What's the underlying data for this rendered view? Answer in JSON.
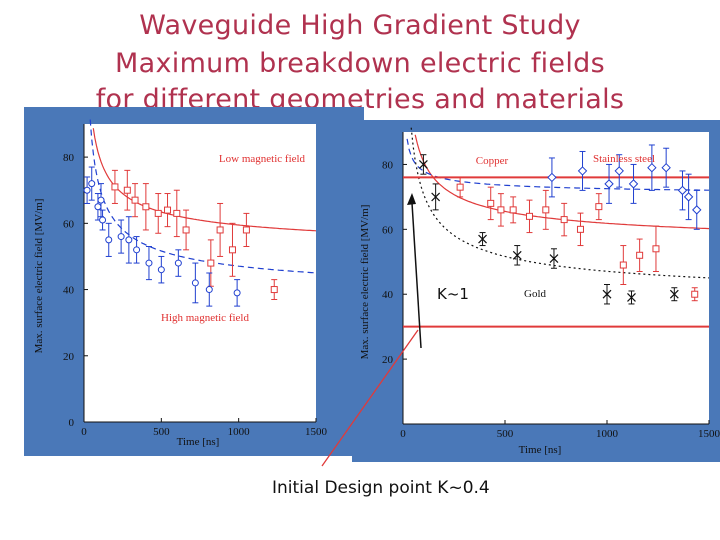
{
  "slide": {
    "title_line1": "Waveguide High Gradient Study",
    "title_line2": "Maximum breakdown electric fields",
    "title_line3": "for different geometries and materials",
    "caption": "Initial Design point K~0.4",
    "k_label": "K~1"
  },
  "colors": {
    "panel_blue": "#4a78b8",
    "plot_bg": "#ffffff",
    "red": "#e03a3a",
    "blue": "#2040d0",
    "black": "#111111",
    "title": "#b0324f"
  },
  "chart_data": [
    {
      "type": "scatter",
      "xlabel": "Time [ns]",
      "ylabel": "Max. surface electric field [MV/m]",
      "xlim": [
        0,
        1500
      ],
      "ylim": [
        0,
        90
      ],
      "x_ticks": [
        0,
        500,
        1000,
        1500
      ],
      "y_ticks": [
        0,
        20,
        40,
        60,
        80
      ],
      "annotations": [
        "Low magnetic field",
        "High magnetic field"
      ],
      "series": [
        {
          "color": "red",
          "marker": "square",
          "points": [
            {
              "x": 200,
              "y": 71,
              "err": 5
            },
            {
              "x": 280,
              "y": 70,
              "err": 6
            },
            {
              "x": 330,
              "y": 67,
              "err": 5
            },
            {
              "x": 400,
              "y": 65,
              "err": 7
            },
            {
              "x": 480,
              "y": 63,
              "err": 6
            },
            {
              "x": 540,
              "y": 64,
              "err": 5
            },
            {
              "x": 600,
              "y": 63,
              "err": 7
            },
            {
              "x": 660,
              "y": 58,
              "err": 6
            },
            {
              "x": 820,
              "y": 48,
              "err": 7
            },
            {
              "x": 880,
              "y": 58,
              "err": 8
            },
            {
              "x": 960,
              "y": 52,
              "err": 8
            },
            {
              "x": 1050,
              "y": 58,
              "err": 5
            },
            {
              "x": 1230,
              "y": 40,
              "err": 3
            }
          ]
        },
        {
          "color": "blue",
          "marker": "circle",
          "points": [
            {
              "x": 20,
              "y": 70,
              "err": 4
            },
            {
              "x": 50,
              "y": 72,
              "err": 5
            },
            {
              "x": 90,
              "y": 65,
              "err": 4
            },
            {
              "x": 110,
              "y": 67,
              "err": 5
            },
            {
              "x": 160,
              "y": 55,
              "err": 5
            },
            {
              "x": 120,
              "y": 61,
              "err": 3
            },
            {
              "x": 240,
              "y": 56,
              "err": 5
            },
            {
              "x": 290,
              "y": 55,
              "err": 7
            },
            {
              "x": 340,
              "y": 52,
              "err": 4
            },
            {
              "x": 420,
              "y": 48,
              "err": 5
            },
            {
              "x": 500,
              "y": 46,
              "err": 4
            },
            {
              "x": 610,
              "y": 48,
              "err": 4
            },
            {
              "x": 720,
              "y": 42,
              "err": 6
            },
            {
              "x": 810,
              "y": 40,
              "err": 5
            },
            {
              "x": 990,
              "y": 39,
              "err": 4
            }
          ]
        }
      ],
      "fits": [
        {
          "color": "red",
          "style": "solid",
          "a": 300,
          "b": 50
        },
        {
          "color": "blue",
          "style": "dashed",
          "a": 350,
          "b": 36
        }
      ]
    },
    {
      "type": "scatter",
      "xlabel": "Time [ns]",
      "ylabel": "Max. surface electric field [MV/m]",
      "xlim": [
        0,
        1500
      ],
      "ylim": [
        0,
        90
      ],
      "x_ticks": [
        0,
        500,
        1000,
        1500
      ],
      "y_ticks": [
        20,
        40,
        60,
        80
      ],
      "series": [
        {
          "name": "Copper",
          "color": "red",
          "marker": "square",
          "points": [
            {
              "x": 280,
              "y": 73,
              "err": 3
            },
            {
              "x": 430,
              "y": 68,
              "err": 5
            },
            {
              "x": 480,
              "y": 66,
              "err": 5
            },
            {
              "x": 540,
              "y": 66,
              "err": 4
            },
            {
              "x": 620,
              "y": 64,
              "err": 5
            },
            {
              "x": 700,
              "y": 66,
              "err": 6
            },
            {
              "x": 790,
              "y": 63,
              "err": 5
            },
            {
              "x": 870,
              "y": 60,
              "err": 5
            },
            {
              "x": 960,
              "y": 67,
              "err": 4
            },
            {
              "x": 1080,
              "y": 49,
              "err": 6
            },
            {
              "x": 1160,
              "y": 52,
              "err": 5
            },
            {
              "x": 1240,
              "y": 54,
              "err": 7
            },
            {
              "x": 1430,
              "y": 40,
              "err": 2
            }
          ]
        },
        {
          "name": "Stainless steel",
          "color": "blue",
          "marker": "diamond",
          "points": [
            {
              "x": 730,
              "y": 76,
              "err": 6
            },
            {
              "x": 880,
              "y": 78,
              "err": 6
            },
            {
              "x": 1010,
              "y": 74,
              "err": 6
            },
            {
              "x": 1060,
              "y": 78,
              "err": 5
            },
            {
              "x": 1130,
              "y": 74,
              "err": 6
            },
            {
              "x": 1220,
              "y": 79,
              "err": 7
            },
            {
              "x": 1290,
              "y": 79,
              "err": 6
            },
            {
              "x": 1370,
              "y": 72,
              "err": 6
            },
            {
              "x": 1400,
              "y": 70,
              "err": 7
            },
            {
              "x": 1440,
              "y": 66,
              "err": 6
            }
          ]
        },
        {
          "name": "Gold",
          "color": "black",
          "marker": "x",
          "points": [
            {
              "x": 100,
              "y": 80,
              "err": 3
            },
            {
              "x": 160,
              "y": 70,
              "err": 4
            },
            {
              "x": 390,
              "y": 57,
              "err": 2
            },
            {
              "x": 560,
              "y": 52,
              "err": 3
            },
            {
              "x": 740,
              "y": 51,
              "err": 3
            },
            {
              "x": 1000,
              "y": 40,
              "err": 3
            },
            {
              "x": 1120,
              "y": 39,
              "err": 2
            },
            {
              "x": 1330,
              "y": 40,
              "err": 2
            }
          ]
        }
      ],
      "fits": [
        {
          "color": "red",
          "style": "solid",
          "a": 280,
          "b": 53
        },
        {
          "color": "blue",
          "style": "dashed",
          "a": 80,
          "b": 70
        },
        {
          "color": "black",
          "style": "dotted",
          "a": 350,
          "b": 36
        }
      ],
      "hlines": [
        {
          "y": 76,
          "color": "red"
        },
        {
          "y": 30,
          "color": "red"
        }
      ]
    }
  ]
}
